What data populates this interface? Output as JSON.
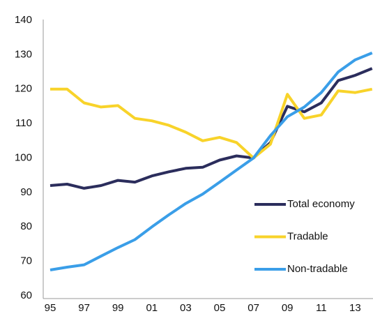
{
  "chart_data": {
    "type": "line",
    "categories": [
      "95",
      null,
      "97",
      null,
      "99",
      null,
      "01",
      null,
      "03",
      null,
      "05",
      null,
      "07",
      null,
      "09",
      null,
      "11",
      null,
      "13",
      null
    ],
    "series": [
      {
        "name": "Total economy",
        "color": "#2b2d5c",
        "values": [
          92,
          92.4,
          91.2,
          92,
          93.5,
          93,
          94.8,
          96,
          97,
          97.3,
          99.4,
          100.6,
          100,
          104.5,
          115,
          113.4,
          116,
          122.5,
          124,
          126
        ]
      },
      {
        "name": "Tradable",
        "color": "#f8d32a",
        "values": [
          120,
          120,
          116,
          114.8,
          115.2,
          111.5,
          110.8,
          109.5,
          107.5,
          105,
          106,
          104.5,
          100,
          104,
          118.5,
          111.5,
          112.5,
          119.5,
          119,
          120
        ]
      },
      {
        "name": "Non-tradable",
        "color": "#3a9ee8",
        "values": [
          67.5,
          68.3,
          69,
          71.5,
          74,
          76.3,
          80,
          83.5,
          86.8,
          89.5,
          93,
          96.5,
          100,
          106.5,
          112,
          114.8,
          119,
          125,
          128.5,
          130.5
        ]
      }
    ],
    "ylim": [
      60,
      140
    ],
    "yticks": [
      60,
      70,
      80,
      90,
      100,
      110,
      120,
      130,
      140
    ],
    "grid": false,
    "legend": "right"
  }
}
